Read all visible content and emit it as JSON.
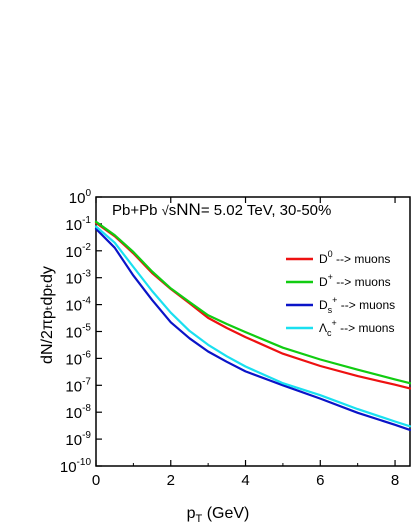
{
  "chart_data": {
    "type": "line",
    "annotation": {
      "prefix": "Pb+Pb ",
      "sqrt": "√",
      "s": "s",
      "nn": "NN",
      "suffix": "= 5.02 TeV, 30-50%"
    },
    "xlabel": {
      "main": "p",
      "sub": "T",
      "rest": " (GeV)"
    },
    "ylabel": "dN/2πpₜdpₜdy",
    "xlim": [
      0,
      8.4
    ],
    "ylim_log10": [
      -10,
      0
    ],
    "yscale": "log",
    "x_ticks": [
      {
        "value": 0,
        "label": "0"
      },
      {
        "value": 2,
        "label": "2"
      },
      {
        "value": 4,
        "label": "4"
      },
      {
        "value": 6,
        "label": "6"
      },
      {
        "value": 8,
        "label": "8"
      }
    ],
    "y_ticks": [
      {
        "exp": 0,
        "base": "10",
        "sup": "0"
      },
      {
        "exp": -1,
        "base": "10",
        "sup": "-1"
      },
      {
        "exp": -2,
        "base": "10",
        "sup": "-2"
      },
      {
        "exp": -3,
        "base": "10",
        "sup": "-3"
      },
      {
        "exp": -4,
        "base": "10",
        "sup": "-4"
      },
      {
        "exp": -5,
        "base": "10",
        "sup": "-5"
      },
      {
        "exp": -6,
        "base": "10",
        "sup": "-6"
      },
      {
        "exp": -7,
        "base": "10",
        "sup": "-7"
      },
      {
        "exp": -8,
        "base": "10",
        "sup": "-8"
      },
      {
        "exp": -9,
        "base": "10",
        "sup": "-9"
      },
      {
        "exp": -10,
        "base": "10",
        "sup": "-10"
      }
    ],
    "legend_position": "top-right",
    "series": [
      {
        "legend": {
          "main": "D",
          "sup": "0",
          "sub": "",
          "rest": " --> muons"
        },
        "color": "#ee1111",
        "x": [
          0,
          0.5,
          1,
          1.5,
          2,
          2.5,
          3,
          3.5,
          4,
          5,
          6,
          7,
          8,
          8.4
        ],
        "y": [
          0.11,
          0.035,
          0.008,
          0.0015,
          0.00038,
          0.000112,
          3.2e-05,
          1.35e-05,
          6.2e-06,
          1.5e-06,
          5.2e-07,
          2.2e-07,
          1.05e-07,
          7.7e-08
        ]
      },
      {
        "legend": {
          "main": "D",
          "sup": "+",
          "sub": "",
          "rest": " --> muons"
        },
        "color": "#11cc11",
        "x": [
          0,
          0.5,
          1,
          1.5,
          2,
          2.5,
          3,
          3.5,
          4,
          5,
          6,
          7,
          8,
          8.4
        ],
        "y": [
          0.12,
          0.038,
          0.009,
          0.0017,
          0.0004,
          0.000125,
          4e-05,
          1.9e-05,
          9.5e-06,
          2.5e-06,
          9.1e-07,
          3.8e-07,
          1.65e-07,
          1.2e-07
        ]
      },
      {
        "legend": {
          "main": "D",
          "sup": "+",
          "sub": "s",
          "rest": " --> muons"
        },
        "color": "#0a14c8",
        "x": [
          0,
          0.5,
          1,
          1.5,
          2,
          2.5,
          3,
          3.5,
          4,
          5,
          6,
          7,
          8,
          8.4
        ],
        "y": [
          0.065,
          0.013,
          0.0012,
          0.00015,
          2.2e-05,
          5.6e-06,
          1.8e-06,
          7.5e-07,
          3.3e-07,
          1e-07,
          3.2e-08,
          9.5e-09,
          3.4e-09,
          2.2e-09
        ]
      },
      {
        "legend": {
          "main": "Λ",
          "sup": "+",
          "sub": "c",
          "rest": " --> muons"
        },
        "color": "#1ae0f0",
        "x": [
          0,
          0.5,
          1,
          1.5,
          2,
          2.5,
          3,
          3.5,
          4,
          5,
          6,
          7,
          8,
          8.4
        ],
        "y": [
          0.08,
          0.02,
          0.0025,
          0.00032,
          5e-05,
          1.05e-05,
          3.2e-06,
          1.2e-06,
          5e-07,
          1.2e-07,
          4.3e-08,
          1.3e-08,
          4.5e-09,
          3e-09
        ]
      }
    ]
  }
}
